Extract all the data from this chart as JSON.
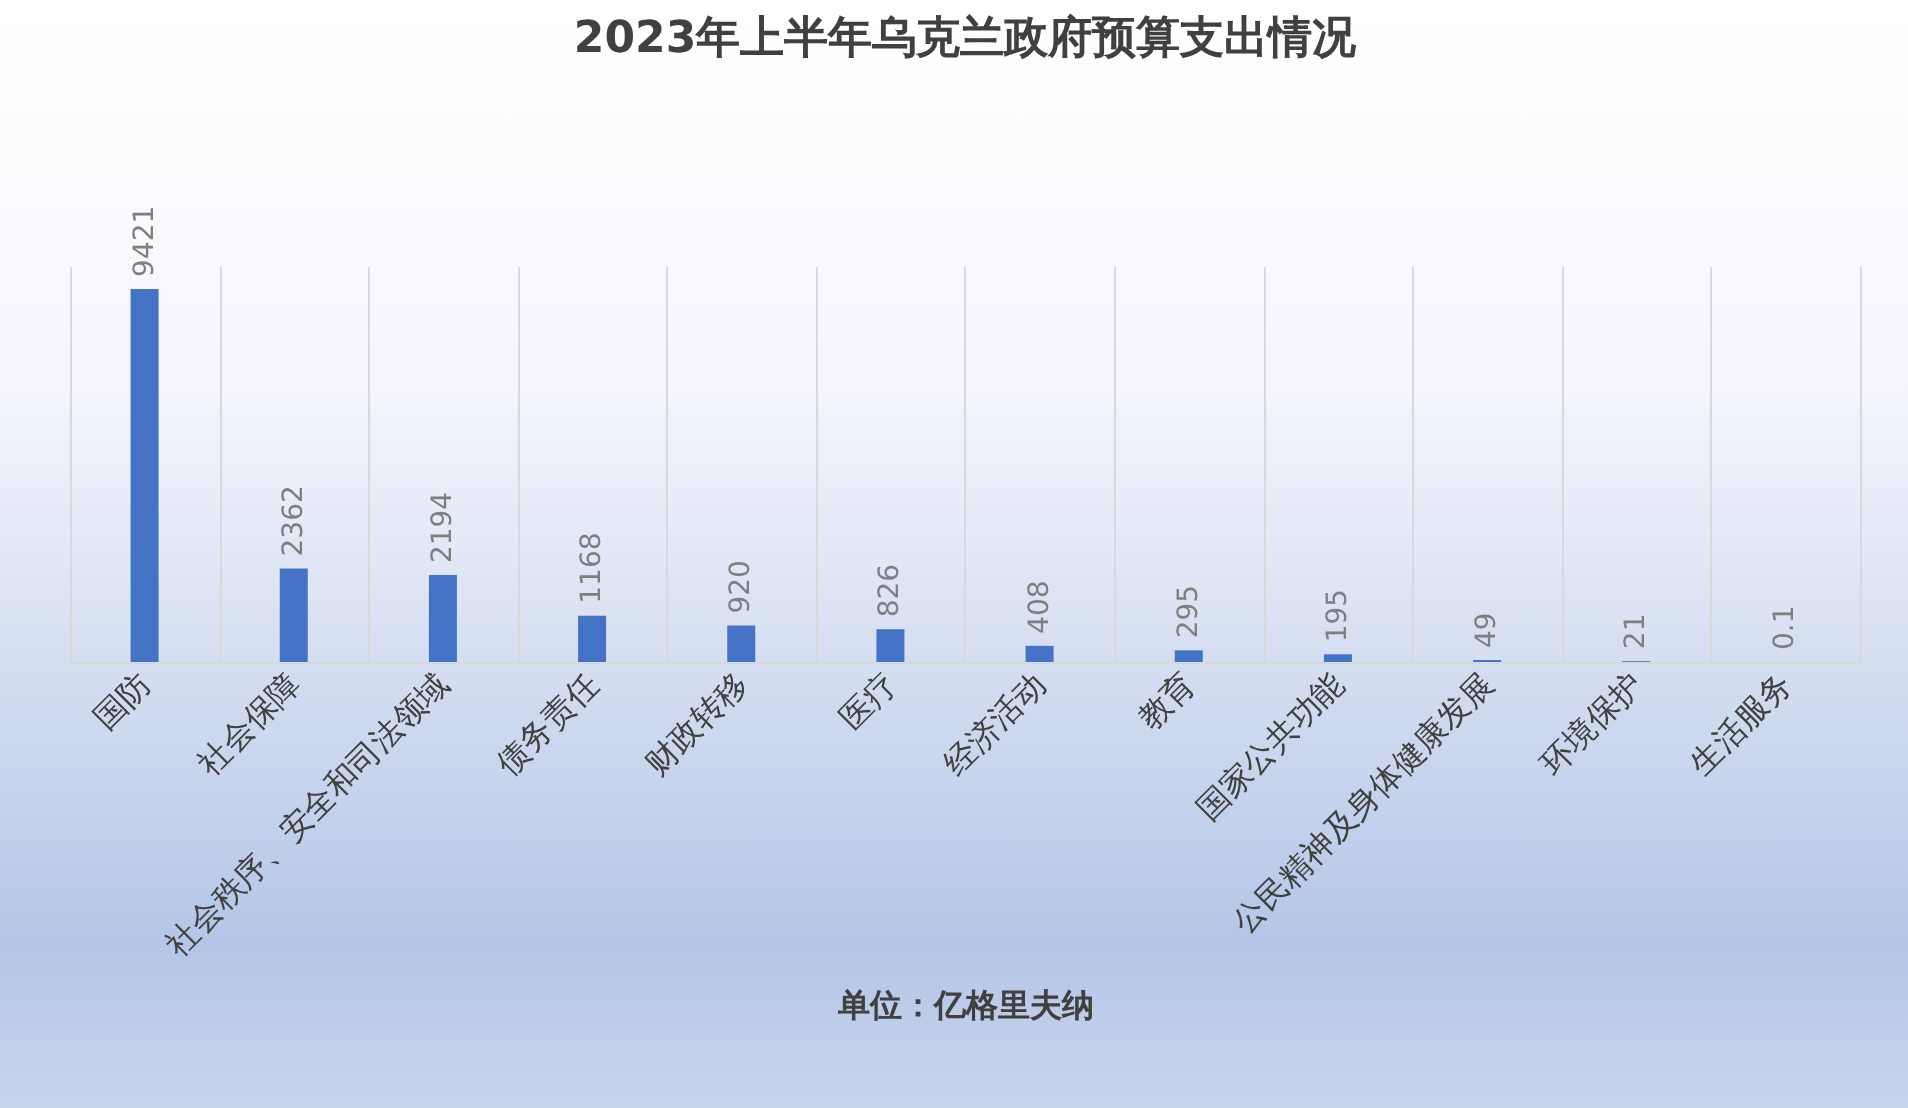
{
  "chart_data": {
    "type": "bar",
    "title": "2023年上半年乌克兰政府预算支出情况",
    "xlabel": "单位：亿格里夫纳",
    "categories": [
      "国防",
      "社会保障",
      "社会秩序、安全和司法领域",
      "债务责任",
      "财政转移",
      "医疗",
      "经济活动",
      "教育",
      "国家公共功能",
      "公民精神及身体健康发展",
      "环境保护",
      "生活服务"
    ],
    "values": [
      9421,
      2362,
      2194,
      1168,
      920,
      826,
      408,
      295,
      195,
      49,
      21,
      0.1
    ],
    "color": "#4472c4",
    "data_labels": true,
    "grid": "x"
  }
}
